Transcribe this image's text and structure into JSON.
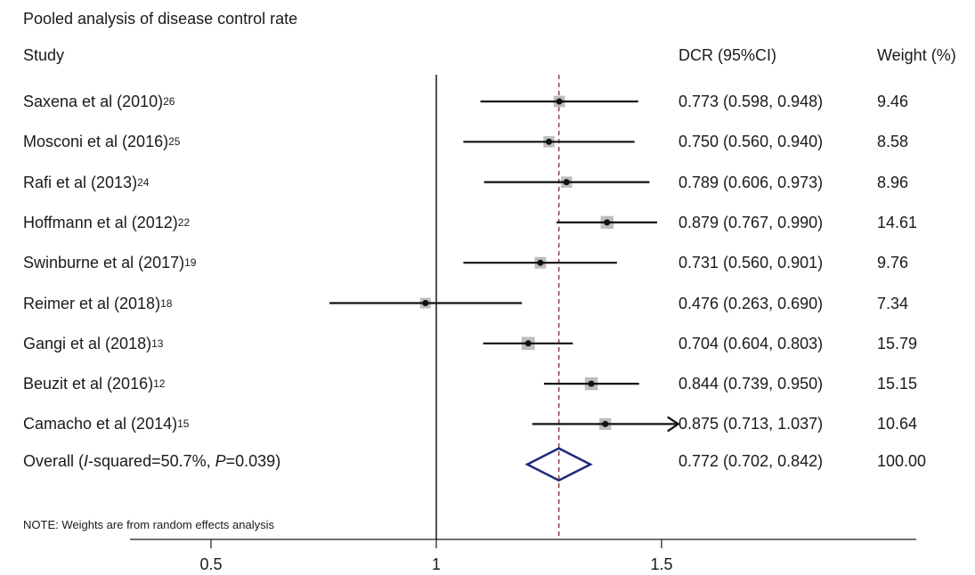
{
  "title": "Pooled analysis of disease control rate",
  "headers": {
    "study": "Study",
    "dcr": "DCR (95%CI)",
    "weight": "Weight (%)"
  },
  "note": "NOTE: Weights are from random effects analysis",
  "overall": {
    "label_prefix": "Overall (",
    "label_i": "I",
    "label_mid": "-squared=50.7%, ",
    "label_p": "P",
    "label_suffix": "=0.039)",
    "dcr_text": "0.772 (0.702, 0.842)",
    "weight_text": "100.00"
  },
  "colors": {
    "diamond": "#1f2a7a",
    "ref_line": "#8b3a4a",
    "box": "#bdbdbd",
    "axis": "#1a1a1a"
  },
  "chart_data": {
    "type": "forest",
    "x_ticks": [
      "0.5",
      "1",
      "1.5"
    ],
    "xlim": [
      0.5,
      1.5
    ],
    "null_line": 1,
    "pooled": {
      "estimate": 0.772,
      "lower": 0.702,
      "upper": 0.842,
      "weight": 100.0
    },
    "studies": [
      {
        "name": "Saxena et al (2010)",
        "ref": "26",
        "estimate": 0.773,
        "lower": 0.598,
        "upper": 0.948,
        "weight": 9.46,
        "dcr_text": "0.773 (0.598, 0.948)",
        "weight_text": "9.46"
      },
      {
        "name": "Mosconi et al (2016)",
        "ref": "25",
        "estimate": 0.75,
        "lower": 0.56,
        "upper": 0.94,
        "weight": 8.58,
        "dcr_text": "0.750 (0.560, 0.940)",
        "weight_text": "8.58"
      },
      {
        "name": "Rafi et al (2013)",
        "ref": "24",
        "estimate": 0.789,
        "lower": 0.606,
        "upper": 0.973,
        "weight": 8.96,
        "dcr_text": "0.789 (0.606, 0.973)",
        "weight_text": "8.96"
      },
      {
        "name": "Hoffmann et al (2012)",
        "ref": "22",
        "estimate": 0.879,
        "lower": 0.767,
        "upper": 0.99,
        "weight": 14.61,
        "dcr_text": "0.879 (0.767, 0.990)",
        "weight_text": "14.61"
      },
      {
        "name": "Swinburne et al (2017)",
        "ref": "19",
        "estimate": 0.731,
        "lower": 0.56,
        "upper": 0.901,
        "weight": 9.76,
        "dcr_text": "0.731 (0.560, 0.901)",
        "weight_text": "9.76"
      },
      {
        "name": "Reimer et al (2018)",
        "ref": "18",
        "estimate": 0.476,
        "lower": 0.263,
        "upper": 0.69,
        "weight": 7.34,
        "dcr_text": "0.476 (0.263, 0.690)",
        "weight_text": "7.34"
      },
      {
        "name": "Gangi et al (2018)",
        "ref": "13",
        "estimate": 0.704,
        "lower": 0.604,
        "upper": 0.803,
        "weight": 15.79,
        "dcr_text": "0.704 (0.604, 0.803)",
        "weight_text": "15.79"
      },
      {
        "name": "Beuzit et al (2016)",
        "ref": "12",
        "estimate": 0.844,
        "lower": 0.739,
        "upper": 0.95,
        "weight": 15.15,
        "dcr_text": "0.844 (0.739, 0.950)",
        "weight_text": "15.15"
      },
      {
        "name": "Camacho et al (2014)",
        "ref": "15",
        "estimate": 0.875,
        "lower": 0.713,
        "upper": 1.037,
        "weight": 10.64,
        "dcr_text": "0.875 (0.713, 1.037)",
        "weight_text": "10.64",
        "arrow_right": true
      }
    ]
  }
}
